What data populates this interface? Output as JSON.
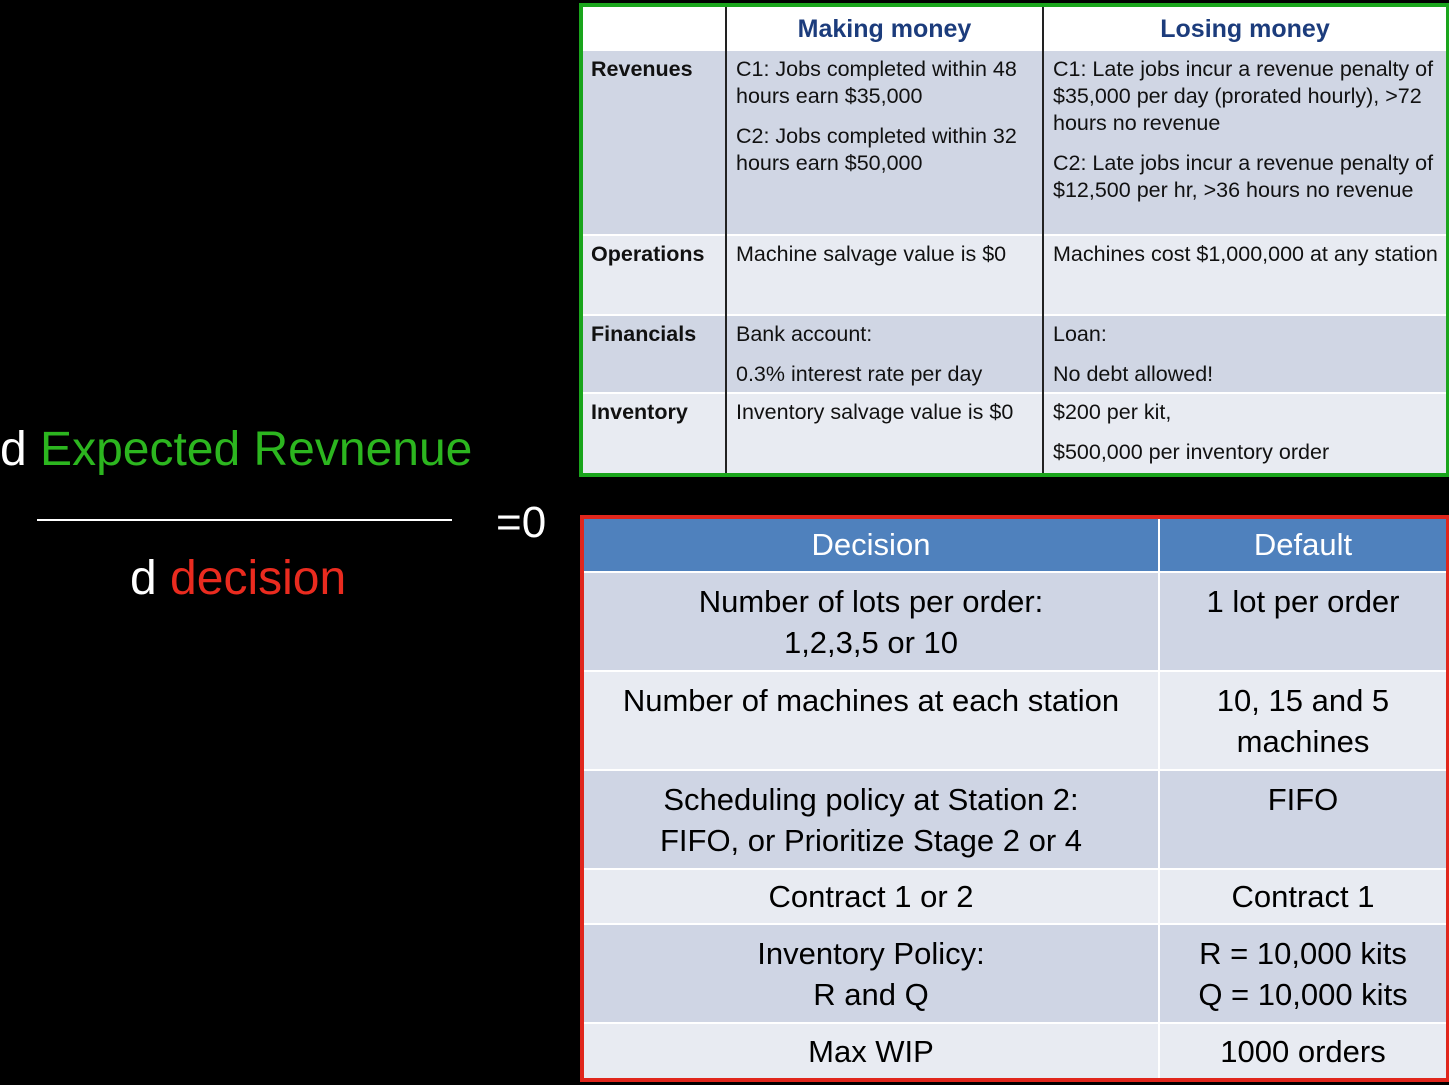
{
  "formula": {
    "numerator_prefix": "d",
    "numerator_term": "Expected Revnenue",
    "denominator_prefix": "d",
    "denominator_term": "decision",
    "equals": "=0",
    "colors": {
      "numerator_term": "#2cb61f",
      "denominator_term": "#ea2b1f"
    }
  },
  "rules_table": {
    "border_color": "#1aa51c",
    "headers": [
      "",
      "Making money",
      "Losing money"
    ],
    "rows": [
      {
        "label": "Revenues",
        "making": [
          "C1: Jobs completed within 48 hours earn $35,000",
          "C2: Jobs completed within 32 hours earn $50,000"
        ],
        "losing": [
          "C1: Late jobs incur a revenue penalty of $35,000 per day (prorated hourly), >72 hours no revenue",
          "C2: Late jobs incur a revenue penalty of $12,500 per hr, >36 hours no revenue"
        ]
      },
      {
        "label": "Operations",
        "making": [
          "Machine salvage value is $0"
        ],
        "losing": [
          "Machines cost $1,000,000 at any station"
        ]
      },
      {
        "label": "Financials",
        "making": [
          "Bank account:",
          "0.3% interest rate per day"
        ],
        "losing": [
          "Loan:",
          "No debt allowed!"
        ]
      },
      {
        "label": "Inventory",
        "making": [
          "Inventory salvage value is $0"
        ],
        "losing": [
          "$200 per kit,",
          "$500,000 per inventory order"
        ]
      }
    ]
  },
  "decisions_table": {
    "border_color": "#e0261c",
    "header_color": "#4f81bd",
    "headers": [
      "Decision",
      "Default"
    ],
    "rows": [
      {
        "decision": [
          "Number of lots per order:",
          "1,2,3,5 or 10"
        ],
        "default": [
          "1 lot per order"
        ]
      },
      {
        "decision": [
          "Number of machines at each station"
        ],
        "default": [
          "10, 15 and 5",
          "machines"
        ]
      },
      {
        "decision": [
          "Scheduling policy at Station 2:",
          "FIFO, or Prioritize Stage 2 or 4"
        ],
        "default": [
          "FIFO"
        ]
      },
      {
        "decision": [
          "Contract 1 or 2"
        ],
        "default": [
          "Contract 1"
        ]
      },
      {
        "decision": [
          "Inventory Policy:",
          "R and Q"
        ],
        "default": [
          "R = 10,000 kits",
          "Q = 10,000 kits"
        ]
      },
      {
        "decision": [
          "Max WIP"
        ],
        "default": [
          "1000 orders"
        ]
      }
    ]
  }
}
